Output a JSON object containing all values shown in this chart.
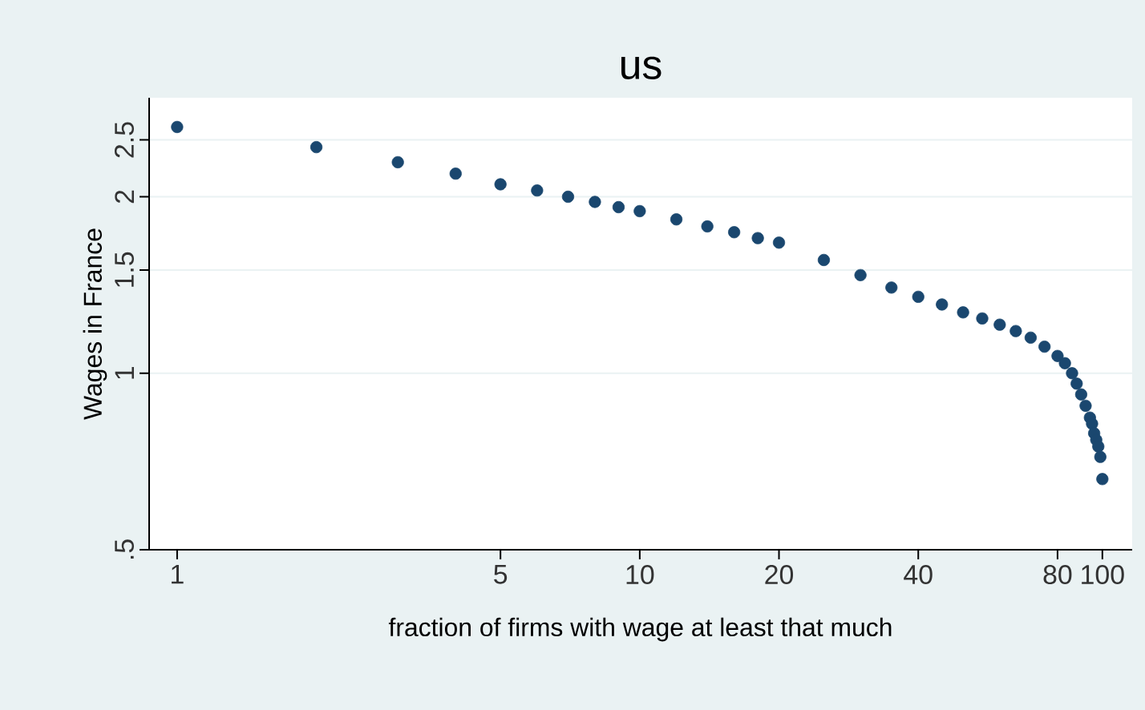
{
  "chart_data": {
    "type": "scatter",
    "title": "us",
    "xlabel": "fraction of firms with wage at least that much",
    "ylabel": "Wages in France",
    "log": "xy",
    "grid": "y",
    "marker": "circle",
    "color": "#1a476f",
    "xlim": [
      0.87,
      116
    ],
    "ylim": [
      0.5,
      2.95
    ],
    "xticks": [
      1,
      5,
      10,
      20,
      40,
      80,
      100
    ],
    "yticks": [
      {
        "value": 0.5,
        "label": ".5"
      },
      1,
      1.5,
      2,
      2.5
    ],
    "x": [
      1,
      2,
      3,
      4,
      5,
      6,
      7,
      8,
      9,
      10,
      12,
      14,
      16,
      18,
      20,
      25,
      30,
      35,
      40,
      45,
      50,
      55,
      60,
      65,
      70,
      75,
      80,
      83,
      86,
      88,
      90,
      92,
      94,
      95,
      96,
      97,
      98,
      99,
      100
    ],
    "values": [
      2.63,
      2.43,
      2.29,
      2.19,
      2.1,
      2.05,
      2.0,
      1.96,
      1.92,
      1.89,
      1.83,
      1.78,
      1.74,
      1.7,
      1.67,
      1.56,
      1.47,
      1.4,
      1.35,
      1.31,
      1.27,
      1.24,
      1.21,
      1.18,
      1.15,
      1.11,
      1.07,
      1.04,
      1.0,
      0.96,
      0.92,
      0.88,
      0.84,
      0.82,
      0.79,
      0.77,
      0.75,
      0.72,
      0.66
    ]
  }
}
